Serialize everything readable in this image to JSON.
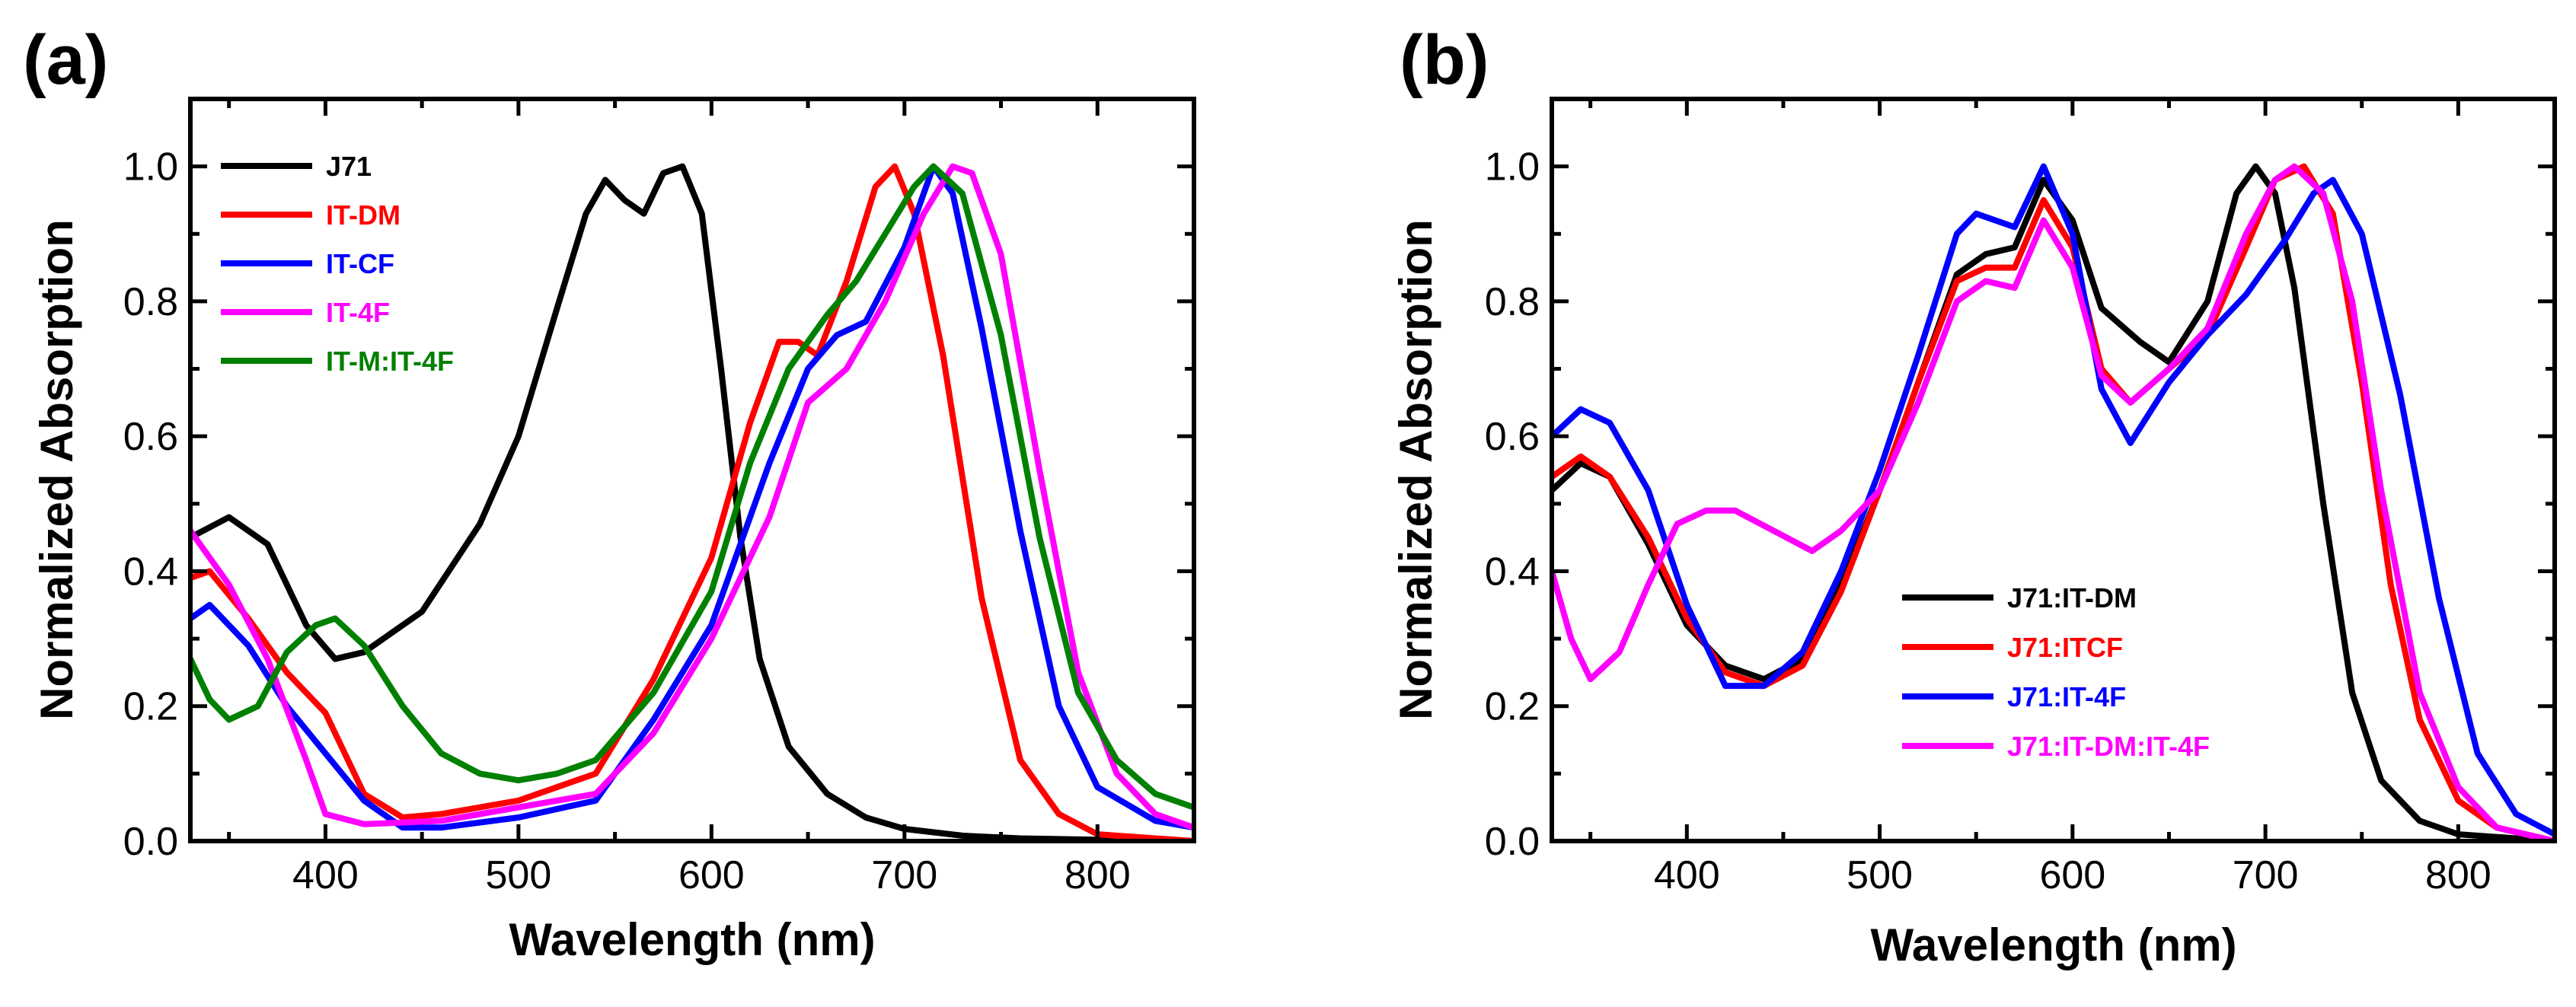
{
  "chart_data": [
    {
      "panel_label": "(a)",
      "type": "line",
      "xlabel": "Wavelength (nm)",
      "ylabel": "Normalized Absorption",
      "xlim": [
        330,
        850
      ],
      "ylim": [
        0.0,
        1.1
      ],
      "xticks": [
        400,
        500,
        600,
        700,
        800
      ],
      "yticks": [
        0.0,
        0.2,
        0.4,
        0.6,
        0.8,
        1.0
      ],
      "xtick_labels": [
        "400",
        "500",
        "600",
        "700",
        "800"
      ],
      "ytick_labels": [
        "0.0",
        "0.2",
        "0.4",
        "0.6",
        "0.8",
        "1.0"
      ],
      "legend_position": "top-left",
      "series": [
        {
          "name": "J71",
          "color": "#000000",
          "points": [
            [
              330,
              0.45
            ],
            [
              350,
              0.48
            ],
            [
              370,
              0.44
            ],
            [
              390,
              0.32
            ],
            [
              405,
              0.27
            ],
            [
              420,
              0.28
            ],
            [
              450,
              0.34
            ],
            [
              480,
              0.47
            ],
            [
              500,
              0.6
            ],
            [
              520,
              0.79
            ],
            [
              535,
              0.93
            ],
            [
              545,
              0.98
            ],
            [
              555,
              0.95
            ],
            [
              565,
              0.93
            ],
            [
              575,
              0.99
            ],
            [
              585,
              1.0
            ],
            [
              595,
              0.93
            ],
            [
              605,
              0.7
            ],
            [
              615,
              0.45
            ],
            [
              625,
              0.27
            ],
            [
              640,
              0.14
            ],
            [
              660,
              0.07
            ],
            [
              680,
              0.035
            ],
            [
              700,
              0.018
            ],
            [
              730,
              0.008
            ],
            [
              760,
              0.004
            ],
            [
              800,
              0.002
            ],
            [
              850,
              0.0
            ]
          ]
        },
        {
          "name": "IT-DM",
          "color": "#ff0000",
          "points": [
            [
              330,
              0.39
            ],
            [
              340,
              0.4
            ],
            [
              360,
              0.33
            ],
            [
              380,
              0.25
            ],
            [
              400,
              0.19
            ],
            [
              405,
              0.16
            ],
            [
              420,
              0.07
            ],
            [
              440,
              0.035
            ],
            [
              460,
              0.04
            ],
            [
              500,
              0.06
            ],
            [
              540,
              0.1
            ],
            [
              570,
              0.24
            ],
            [
              600,
              0.42
            ],
            [
              620,
              0.62
            ],
            [
              635,
              0.74
            ],
            [
              645,
              0.74
            ],
            [
              655,
              0.72
            ],
            [
              670,
              0.83
            ],
            [
              685,
              0.97
            ],
            [
              695,
              1.0
            ],
            [
              705,
              0.93
            ],
            [
              720,
              0.72
            ],
            [
              740,
              0.36
            ],
            [
              760,
              0.12
            ],
            [
              780,
              0.04
            ],
            [
              800,
              0.01
            ],
            [
              850,
              0.0
            ]
          ]
        },
        {
          "name": "IT-CF",
          "color": "#0000ff",
          "points": [
            [
              330,
              0.33
            ],
            [
              340,
              0.35
            ],
            [
              360,
              0.29
            ],
            [
              380,
              0.2
            ],
            [
              400,
              0.13
            ],
            [
              420,
              0.06
            ],
            [
              440,
              0.02
            ],
            [
              460,
              0.02
            ],
            [
              500,
              0.035
            ],
            [
              540,
              0.06
            ],
            [
              570,
              0.18
            ],
            [
              600,
              0.32
            ],
            [
              630,
              0.56
            ],
            [
              650,
              0.7
            ],
            [
              665,
              0.75
            ],
            [
              680,
              0.77
            ],
            [
              700,
              0.88
            ],
            [
              715,
              1.0
            ],
            [
              725,
              0.96
            ],
            [
              740,
              0.76
            ],
            [
              760,
              0.46
            ],
            [
              780,
              0.2
            ],
            [
              800,
              0.08
            ],
            [
              830,
              0.03
            ],
            [
              850,
              0.02
            ]
          ]
        },
        {
          "name": "IT-4F",
          "color": "#ff00ff",
          "points": [
            [
              330,
              0.46
            ],
            [
              350,
              0.38
            ],
            [
              370,
              0.27
            ],
            [
              390,
              0.12
            ],
            [
              400,
              0.04
            ],
            [
              420,
              0.025
            ],
            [
              460,
              0.03
            ],
            [
              500,
              0.05
            ],
            [
              540,
              0.07
            ],
            [
              570,
              0.16
            ],
            [
              600,
              0.3
            ],
            [
              630,
              0.48
            ],
            [
              650,
              0.65
            ],
            [
              670,
              0.7
            ],
            [
              690,
              0.8
            ],
            [
              710,
              0.93
            ],
            [
              725,
              1.0
            ],
            [
              735,
              0.99
            ],
            [
              750,
              0.87
            ],
            [
              770,
              0.55
            ],
            [
              790,
              0.25
            ],
            [
              810,
              0.1
            ],
            [
              830,
              0.04
            ],
            [
              850,
              0.02
            ]
          ]
        },
        {
          "name": "IT-M:IT-4F",
          "color": "#008000",
          "points": [
            [
              330,
              0.27
            ],
            [
              340,
              0.21
            ],
            [
              350,
              0.18
            ],
            [
              365,
              0.2
            ],
            [
              380,
              0.28
            ],
            [
              395,
              0.32
            ],
            [
              405,
              0.33
            ],
            [
              420,
              0.29
            ],
            [
              440,
              0.2
            ],
            [
              460,
              0.13
            ],
            [
              480,
              0.1
            ],
            [
              500,
              0.09
            ],
            [
              520,
              0.1
            ],
            [
              540,
              0.12
            ],
            [
              570,
              0.22
            ],
            [
              600,
              0.37
            ],
            [
              620,
              0.56
            ],
            [
              640,
              0.7
            ],
            [
              660,
              0.78
            ],
            [
              675,
              0.83
            ],
            [
              690,
              0.9
            ],
            [
              705,
              0.97
            ],
            [
              715,
              1.0
            ],
            [
              730,
              0.96
            ],
            [
              750,
              0.75
            ],
            [
              770,
              0.45
            ],
            [
              790,
              0.22
            ],
            [
              810,
              0.12
            ],
            [
              830,
              0.07
            ],
            [
              850,
              0.05
            ]
          ]
        }
      ]
    },
    {
      "panel_label": "(b)",
      "type": "line",
      "xlabel": "Wavelength (nm)",
      "ylabel": "Normalized Absorption",
      "xlim": [
        330,
        850
      ],
      "ylim": [
        0.0,
        1.1
      ],
      "xticks": [
        400,
        500,
        600,
        700,
        800
      ],
      "yticks": [
        0.0,
        0.2,
        0.4,
        0.6,
        0.8,
        1.0
      ],
      "xtick_labels": [
        "400",
        "500",
        "600",
        "700",
        "800"
      ],
      "ytick_labels": [
        "0.0",
        "0.2",
        "0.4",
        "0.6",
        "0.8",
        "1.0"
      ],
      "legend_position": "lower-center",
      "series": [
        {
          "name": "J71:IT-DM",
          "color": "#000000",
          "points": [
            [
              330,
              0.52
            ],
            [
              345,
              0.56
            ],
            [
              360,
              0.54
            ],
            [
              380,
              0.44
            ],
            [
              400,
              0.32
            ],
            [
              420,
              0.26
            ],
            [
              440,
              0.24
            ],
            [
              460,
              0.27
            ],
            [
              480,
              0.38
            ],
            [
              500,
              0.52
            ],
            [
              520,
              0.68
            ],
            [
              540,
              0.84
            ],
            [
              555,
              0.87
            ],
            [
              570,
              0.88
            ],
            [
              585,
              0.98
            ],
            [
              600,
              0.92
            ],
            [
              615,
              0.79
            ],
            [
              635,
              0.74
            ],
            [
              650,
              0.71
            ],
            [
              670,
              0.8
            ],
            [
              685,
              0.96
            ],
            [
              695,
              1.0
            ],
            [
              705,
              0.96
            ],
            [
              715,
              0.82
            ],
            [
              730,
              0.5
            ],
            [
              745,
              0.22
            ],
            [
              760,
              0.09
            ],
            [
              780,
              0.03
            ],
            [
              800,
              0.01
            ],
            [
              850,
              0.0
            ]
          ]
        },
        {
          "name": "J71:ITCF",
          "color": "#ff0000",
          "points": [
            [
              330,
              0.54
            ],
            [
              345,
              0.57
            ],
            [
              360,
              0.54
            ],
            [
              380,
              0.45
            ],
            [
              400,
              0.33
            ],
            [
              420,
              0.25
            ],
            [
              440,
              0.23
            ],
            [
              460,
              0.26
            ],
            [
              480,
              0.37
            ],
            [
              500,
              0.52
            ],
            [
              520,
              0.68
            ],
            [
              540,
              0.83
            ],
            [
              555,
              0.85
            ],
            [
              570,
              0.85
            ],
            [
              585,
              0.95
            ],
            [
              600,
              0.88
            ],
            [
              615,
              0.7
            ],
            [
              630,
              0.65
            ],
            [
              650,
              0.7
            ],
            [
              670,
              0.75
            ],
            [
              690,
              0.88
            ],
            [
              705,
              0.98
            ],
            [
              720,
              1.0
            ],
            [
              735,
              0.93
            ],
            [
              750,
              0.68
            ],
            [
              765,
              0.38
            ],
            [
              780,
              0.18
            ],
            [
              800,
              0.06
            ],
            [
              820,
              0.02
            ],
            [
              850,
              0.0
            ]
          ]
        },
        {
          "name": "J71:IT-4F",
          "color": "#0000ff",
          "points": [
            [
              330,
              0.6
            ],
            [
              345,
              0.64
            ],
            [
              360,
              0.62
            ],
            [
              380,
              0.52
            ],
            [
              400,
              0.35
            ],
            [
              420,
              0.23
            ],
            [
              440,
              0.23
            ],
            [
              460,
              0.28
            ],
            [
              480,
              0.4
            ],
            [
              500,
              0.55
            ],
            [
              520,
              0.72
            ],
            [
              540,
              0.9
            ],
            [
              550,
              0.93
            ],
            [
              570,
              0.91
            ],
            [
              585,
              1.0
            ],
            [
              600,
              0.9
            ],
            [
              615,
              0.67
            ],
            [
              630,
              0.59
            ],
            [
              650,
              0.68
            ],
            [
              670,
              0.75
            ],
            [
              690,
              0.81
            ],
            [
              710,
              0.89
            ],
            [
              725,
              0.96
            ],
            [
              735,
              0.98
            ],
            [
              750,
              0.9
            ],
            [
              770,
              0.66
            ],
            [
              790,
              0.36
            ],
            [
              810,
              0.13
            ],
            [
              830,
              0.04
            ],
            [
              850,
              0.01
            ]
          ]
        },
        {
          "name": "J71:IT-DM:IT-4F",
          "color": "#ff00ff",
          "points": [
            [
              330,
              0.4
            ],
            [
              340,
              0.3
            ],
            [
              350,
              0.24
            ],
            [
              365,
              0.28
            ],
            [
              380,
              0.38
            ],
            [
              395,
              0.47
            ],
            [
              410,
              0.49
            ],
            [
              425,
              0.49
            ],
            [
              445,
              0.46
            ],
            [
              465,
              0.43
            ],
            [
              480,
              0.46
            ],
            [
              500,
              0.52
            ],
            [
              520,
              0.65
            ],
            [
              540,
              0.8
            ],
            [
              555,
              0.83
            ],
            [
              570,
              0.82
            ],
            [
              585,
              0.92
            ],
            [
              600,
              0.85
            ],
            [
              615,
              0.69
            ],
            [
              630,
              0.65
            ],
            [
              650,
              0.7
            ],
            [
              670,
              0.76
            ],
            [
              690,
              0.9
            ],
            [
              705,
              0.98
            ],
            [
              715,
              1.0
            ],
            [
              730,
              0.96
            ],
            [
              745,
              0.8
            ],
            [
              760,
              0.52
            ],
            [
              780,
              0.22
            ],
            [
              800,
              0.08
            ],
            [
              820,
              0.02
            ],
            [
              850,
              0.0
            ]
          ]
        }
      ]
    }
  ]
}
